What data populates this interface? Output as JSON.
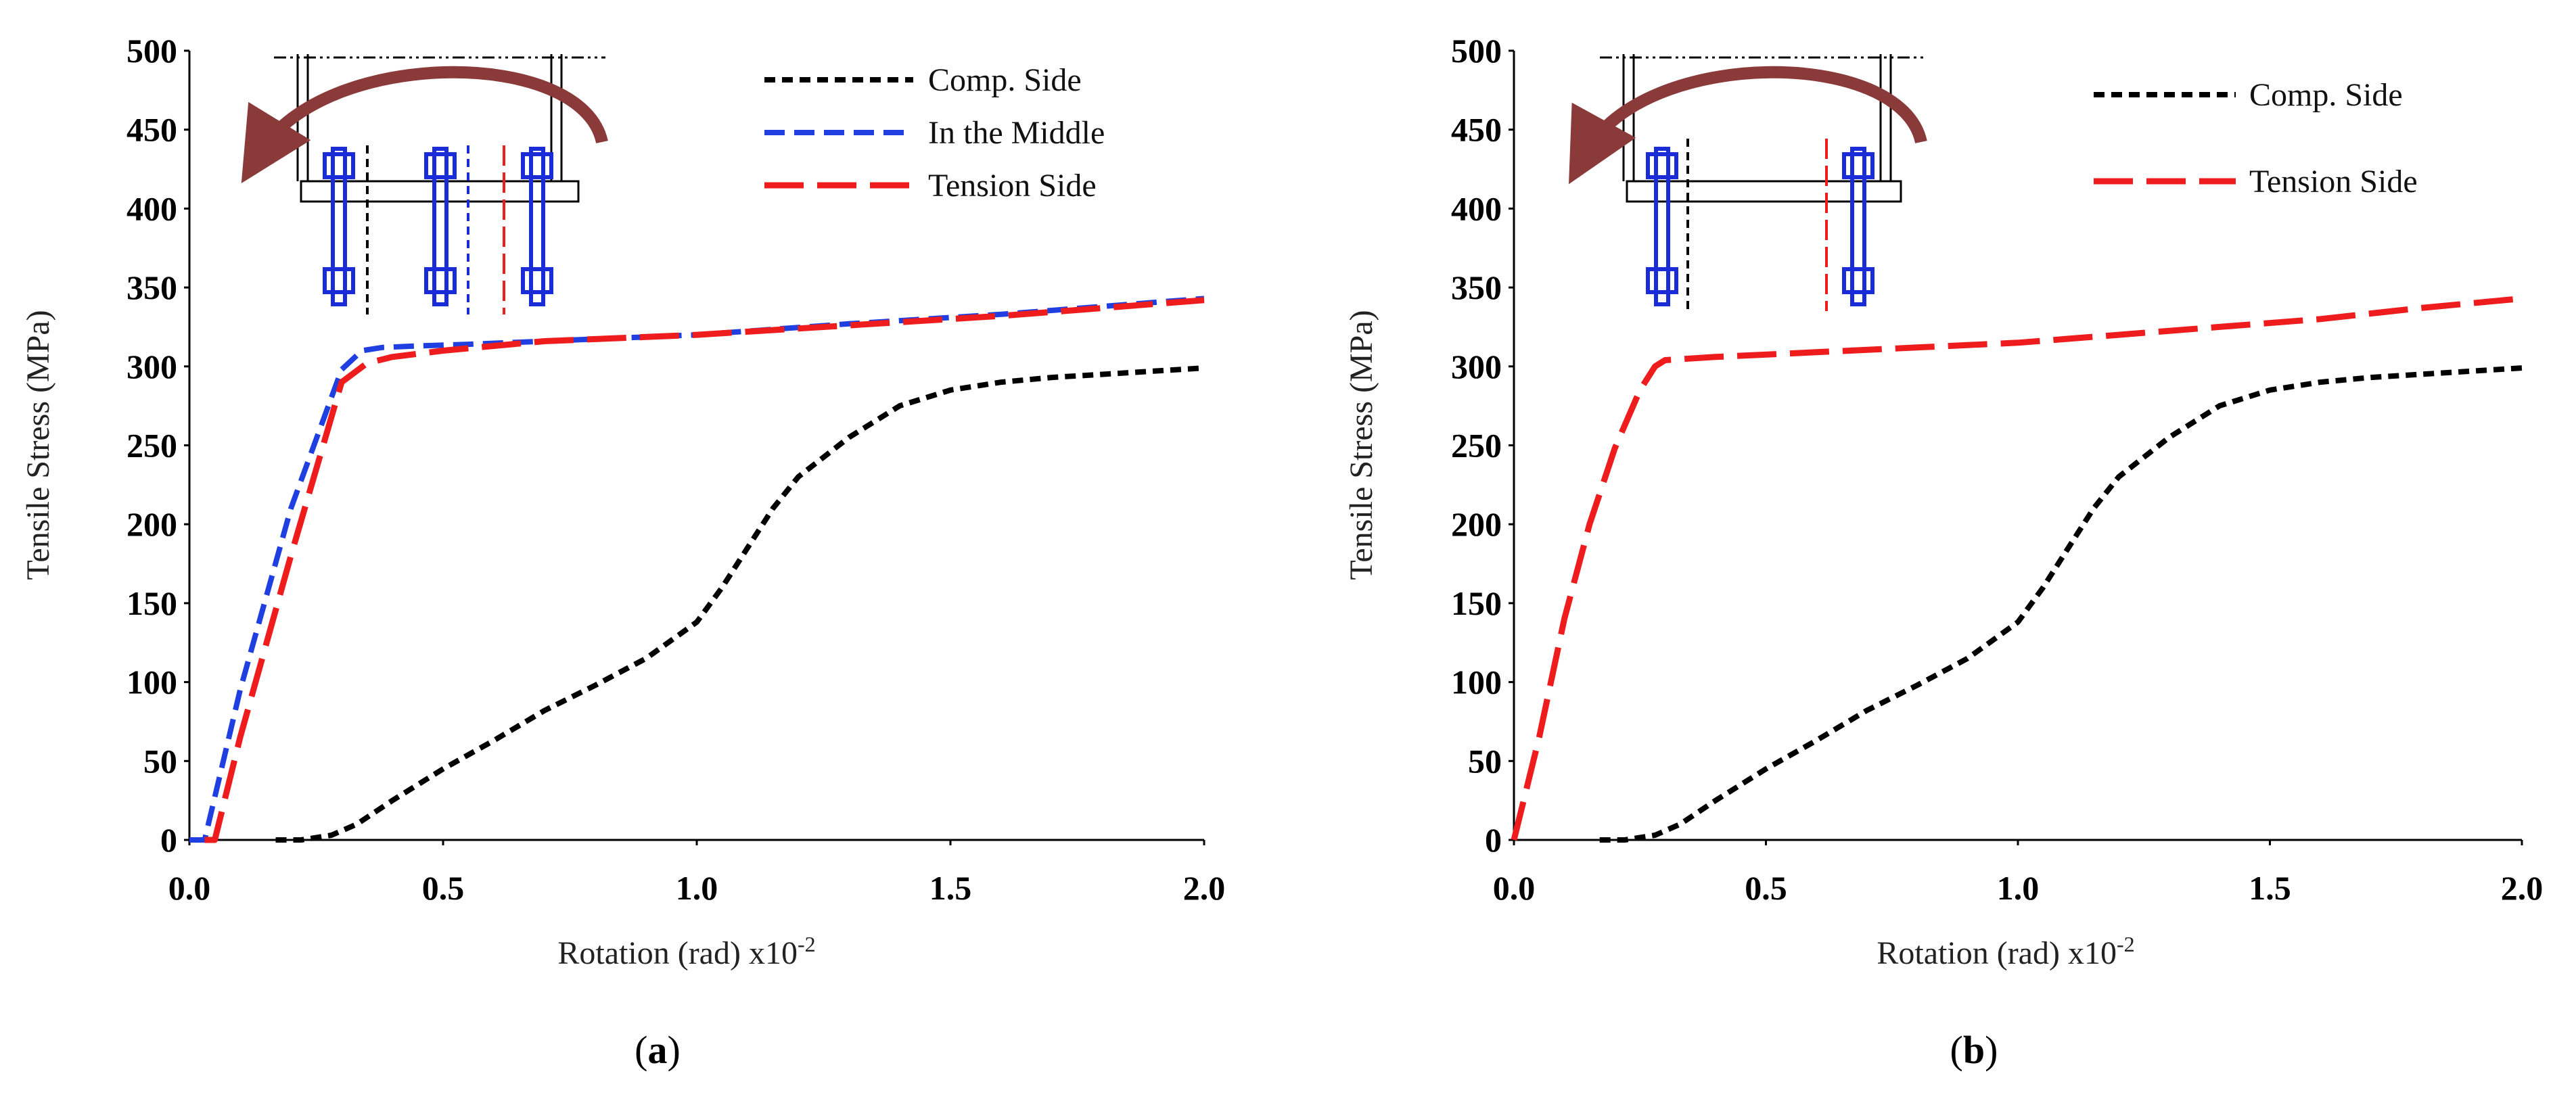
{
  "chart_data": [
    {
      "type": "line",
      "panel": "a",
      "caption_prefix": "(",
      "caption_letter": "a",
      "caption_suffix": ")",
      "xlabel": "Rotation (rad) x10",
      "xlabel_sup": "-2",
      "ylabel": "Tensile Stress (MPa)",
      "xlim": [
        0,
        2.0
      ],
      "ylim": [
        0,
        500
      ],
      "xticks": [
        "0.0",
        "0.5",
        "1.0",
        "1.5",
        "2.0"
      ],
      "yticks": [
        "0",
        "50",
        "100",
        "150",
        "200",
        "250",
        "300",
        "350",
        "400",
        "450",
        "500"
      ],
      "legend_position": "top-right",
      "series": [
        {
          "name": "Comp. Side",
          "color": "#000000",
          "style": "short-dash",
          "x": [
            0.17,
            0.22,
            0.28,
            0.33,
            0.4,
            0.5,
            0.6,
            0.7,
            0.8,
            0.9,
            1.0,
            1.05,
            1.1,
            1.15,
            1.2,
            1.3,
            1.4,
            1.5,
            1.6,
            1.7,
            1.8,
            1.9,
            2.0
          ],
          "y": [
            0,
            0,
            3,
            10,
            25,
            45,
            63,
            82,
            98,
            115,
            138,
            160,
            185,
            210,
            230,
            255,
            275,
            285,
            290,
            293,
            295,
            297,
            299
          ]
        },
        {
          "name": "In the Middle",
          "color": "#1f3fe0",
          "style": "medium-dash",
          "x": [
            0.0,
            0.03,
            0.1,
            0.2,
            0.3,
            0.34,
            0.38,
            0.45,
            0.55,
            0.7,
            1.0,
            1.3,
            1.6,
            2.0
          ],
          "y": [
            0,
            0,
            95,
            210,
            298,
            310,
            312,
            313,
            314,
            316,
            320,
            327,
            333,
            343
          ]
        },
        {
          "name": "Tension Side",
          "color": "#ee1c1c",
          "style": "long-dash",
          "x": [
            0.03,
            0.05,
            0.1,
            0.2,
            0.3,
            0.35,
            0.4,
            0.5,
            0.7,
            1.0,
            1.3,
            1.6,
            2.0
          ],
          "y": [
            0,
            0,
            65,
            180,
            290,
            302,
            306,
            310,
            316,
            320,
            326,
            332,
            342
          ]
        }
      ]
    },
    {
      "type": "line",
      "panel": "b",
      "caption_prefix": "(",
      "caption_letter": "b",
      "caption_suffix": ")",
      "xlabel": "Rotation (rad) x10",
      "xlabel_sup": "-2",
      "ylabel": "Tensile Stress (MPa)",
      "xlim": [
        0,
        2.0
      ],
      "ylim": [
        0,
        500
      ],
      "xticks": [
        "0.0",
        "0.5",
        "1.0",
        "1.5",
        "2.0"
      ],
      "yticks": [
        "0",
        "50",
        "100",
        "150",
        "200",
        "250",
        "300",
        "350",
        "400",
        "450",
        "500"
      ],
      "legend_position": "top-right",
      "series": [
        {
          "name": "Comp. Side",
          "color": "#000000",
          "style": "short-dash",
          "x": [
            0.17,
            0.22,
            0.28,
            0.33,
            0.4,
            0.5,
            0.6,
            0.7,
            0.8,
            0.9,
            1.0,
            1.05,
            1.1,
            1.15,
            1.2,
            1.3,
            1.4,
            1.5,
            1.6,
            1.7,
            1.8,
            1.9,
            2.0
          ],
          "y": [
            0,
            0,
            3,
            10,
            25,
            45,
            63,
            82,
            98,
            115,
            138,
            160,
            185,
            210,
            230,
            255,
            275,
            285,
            290,
            293,
            295,
            297,
            299
          ]
        },
        {
          "name": "Tension Side",
          "color": "#ee1c1c",
          "style": "long-dash",
          "x": [
            0.0,
            0.05,
            0.1,
            0.15,
            0.2,
            0.25,
            0.28,
            0.3,
            0.4,
            0.6,
            0.8,
            1.0,
            1.2,
            1.4,
            1.6,
            1.8,
            2.0
          ],
          "y": [
            0,
            65,
            140,
            200,
            248,
            285,
            300,
            304,
            306,
            309,
            312,
            315,
            320,
            325,
            330,
            337,
            343
          ]
        }
      ]
    }
  ]
}
